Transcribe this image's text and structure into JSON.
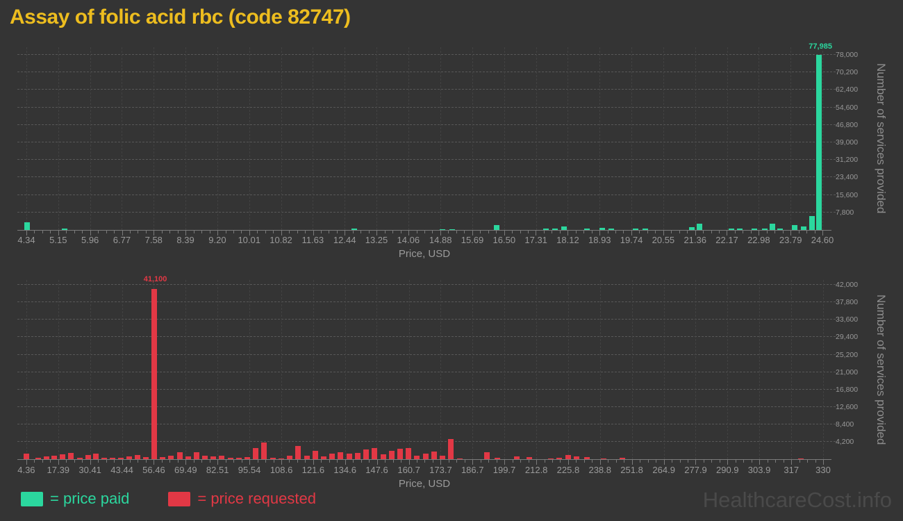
{
  "title": "Assay of folic acid rbc (code 82747)",
  "watermark": "HealthcareCost.info",
  "legend": {
    "paid_label": "= price paid",
    "requested_label": "= price requested"
  },
  "colors": {
    "background": "#343434",
    "title": "#edbd1f",
    "paid": "#2bd79e",
    "requested": "#e23845",
    "axis_text": "#9a9a9a",
    "gridline": "#585858",
    "watermark": "#4a4a4a"
  },
  "chart_data": [
    {
      "type": "bar",
      "name": "price-paid-histogram",
      "series_label": "price paid",
      "color": "#2bd79e",
      "xlabel": "Price, USD",
      "ylabel": "Number of services provided",
      "x_ticks": [
        "4.34",
        "5.15",
        "5.96",
        "6.77",
        "7.58",
        "8.39",
        "9.20",
        "10.01",
        "10.82",
        "11.63",
        "12.44",
        "13.25",
        "14.06",
        "14.88",
        "15.69",
        "16.50",
        "17.31",
        "18.12",
        "18.93",
        "19.74",
        "20.55",
        "21.36",
        "22.17",
        "22.98",
        "23.79",
        "24.60"
      ],
      "y_ticks": [
        7800,
        15600,
        23400,
        31200,
        39000,
        46800,
        54600,
        62400,
        70200,
        78000
      ],
      "x_range_plot": [
        4.11,
        24.83
      ],
      "y_max_plot": 81400,
      "peak": {
        "label": "77,985",
        "price": 24.52,
        "value": 77985
      },
      "bars": [
        [
          4.36,
          3500
        ],
        [
          5.31,
          600
        ],
        [
          12.69,
          550
        ],
        [
          14.93,
          450
        ],
        [
          15.18,
          450
        ],
        [
          16.3,
          2200
        ],
        [
          17.57,
          500
        ],
        [
          17.79,
          500
        ],
        [
          18.02,
          1500
        ],
        [
          18.6,
          500
        ],
        [
          19.0,
          1000
        ],
        [
          19.23,
          650
        ],
        [
          19.85,
          600
        ],
        [
          20.1,
          600
        ],
        [
          21.28,
          1100
        ],
        [
          21.47,
          2900
        ],
        [
          22.28,
          500
        ],
        [
          22.5,
          500
        ],
        [
          22.87,
          500
        ],
        [
          23.13,
          500
        ],
        [
          23.33,
          2900
        ],
        [
          23.52,
          500
        ],
        [
          23.89,
          2200
        ],
        [
          24.12,
          1700
        ],
        [
          24.33,
          6100
        ],
        [
          24.52,
          77985
        ]
      ]
    },
    {
      "type": "bar",
      "name": "price-requested-histogram",
      "series_label": "price requested",
      "color": "#e23845",
      "xlabel": "Price, USD",
      "ylabel": "Number of services provided",
      "x_ticks": [
        "4.36",
        "17.39",
        "30.41",
        "43.44",
        "56.46",
        "69.49",
        "82.51",
        "95.54",
        "108.6",
        "121.6",
        "134.6",
        "147.6",
        "160.7",
        "173.7",
        "186.7",
        "199.7",
        "212.8",
        "225.8",
        "238.8",
        "251.8",
        "264.9",
        "277.9",
        "290.9",
        "303.9",
        "317",
        "330"
      ],
      "y_ticks": [
        4200,
        8400,
        12600,
        16800,
        21000,
        25200,
        29400,
        33600,
        37800,
        42000
      ],
      "x_range_plot": [
        0.7,
        333.4
      ],
      "y_max_plot": 43200,
      "peak": {
        "label": "41,100",
        "price": 56.6,
        "value": 41100
      },
      "bars": [
        [
          4.5,
          1400
        ],
        [
          9.2,
          370
        ],
        [
          12.6,
          680
        ],
        [
          15.7,
          890
        ],
        [
          19.1,
          1150
        ],
        [
          22.5,
          1575
        ],
        [
          26.2,
          370
        ],
        [
          29.6,
          1050
        ],
        [
          32.9,
          1300
        ],
        [
          36.1,
          420
        ],
        [
          39.5,
          260
        ],
        [
          42.9,
          370
        ],
        [
          46.4,
          680
        ],
        [
          49.8,
          950
        ],
        [
          53.2,
          520
        ],
        [
          56.6,
          41100
        ],
        [
          60.1,
          520
        ],
        [
          63.5,
          800
        ],
        [
          67.0,
          1600
        ],
        [
          70.4,
          750
        ],
        [
          73.9,
          1750
        ],
        [
          77.4,
          900
        ],
        [
          80.8,
          650
        ],
        [
          84.3,
          800
        ],
        [
          87.8,
          300
        ],
        [
          91.2,
          400
        ],
        [
          94.7,
          550
        ],
        [
          98.2,
          2600
        ],
        [
          101.6,
          4000
        ],
        [
          105.1,
          400
        ],
        [
          108.6,
          250
        ],
        [
          112.0,
          900
        ],
        [
          115.5,
          3200
        ],
        [
          119.0,
          900
        ],
        [
          122.4,
          2000
        ],
        [
          125.9,
          600
        ],
        [
          129.4,
          1400
        ],
        [
          132.8,
          1700
        ],
        [
          136.3,
          1400
        ],
        [
          139.8,
          1500
        ],
        [
          143.2,
          2300
        ],
        [
          146.7,
          2700
        ],
        [
          150.2,
          1250
        ],
        [
          153.6,
          2000
        ],
        [
          157.1,
          2500
        ],
        [
          160.6,
          2700
        ],
        [
          164.0,
          900
        ],
        [
          167.5,
          1400
        ],
        [
          171.0,
          1900
        ],
        [
          174.4,
          900
        ],
        [
          177.9,
          4800
        ],
        [
          181.4,
          250
        ],
        [
          192.5,
          1700
        ],
        [
          196.8,
          380
        ],
        [
          204.8,
          700
        ],
        [
          210.0,
          480
        ],
        [
          218.7,
          250
        ],
        [
          222.2,
          380
        ],
        [
          225.7,
          950
        ],
        [
          229.1,
          700
        ],
        [
          233.4,
          480
        ],
        [
          240.3,
          250
        ],
        [
          247.9,
          300
        ],
        [
          320.9,
          250
        ]
      ]
    }
  ]
}
